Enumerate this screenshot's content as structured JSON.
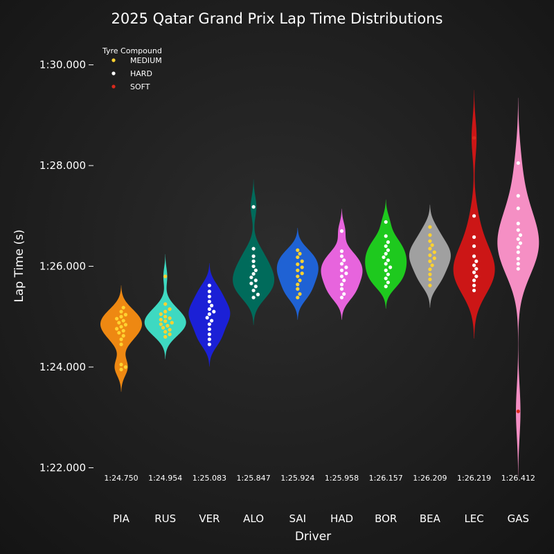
{
  "chart_data": {
    "type": "violin",
    "title": "2025 Qatar Grand Prix Lap Time Distributions",
    "xlabel": "Driver",
    "ylabel": "Lap Time (s)",
    "ylim": [
      81.8,
      90.6
    ],
    "y_ticks": [
      {
        "value": 82,
        "label": "1:22.000"
      },
      {
        "value": 84,
        "label": "1:24.000"
      },
      {
        "value": 86,
        "label": "1:26.000"
      },
      {
        "value": 88,
        "label": "1:28.000"
      },
      {
        "value": 90,
        "label": "1:30.000"
      }
    ],
    "legend": {
      "title": "Tyre Compound",
      "position": "top-left",
      "items": [
        {
          "name": "MEDIUM",
          "color": "#ffd230"
        },
        {
          "name": "HARD",
          "color": "#ffffff"
        },
        {
          "name": "SOFT",
          "color": "#da291c"
        }
      ]
    },
    "compound_colors": {
      "MEDIUM": "#ffd230",
      "HARD": "#ffffff",
      "SOFT": "#da291c"
    },
    "background": "#1c1c1c",
    "drivers": [
      {
        "code": "PIA",
        "color": "#ee8812",
        "median_label": "1:24.750",
        "median": 84.75,
        "laps": [
          {
            "t": 84.05,
            "c": "MEDIUM"
          },
          {
            "t": 84.0,
            "c": "MEDIUM"
          },
          {
            "t": 83.95,
            "c": "MEDIUM"
          },
          {
            "t": 84.45,
            "c": "MEDIUM"
          },
          {
            "t": 84.55,
            "c": "MEDIUM"
          },
          {
            "t": 84.62,
            "c": "MEDIUM"
          },
          {
            "t": 84.68,
            "c": "MEDIUM"
          },
          {
            "t": 84.72,
            "c": "MEDIUM"
          },
          {
            "t": 84.76,
            "c": "MEDIUM"
          },
          {
            "t": 84.8,
            "c": "MEDIUM"
          },
          {
            "t": 84.84,
            "c": "MEDIUM"
          },
          {
            "t": 84.88,
            "c": "MEDIUM"
          },
          {
            "t": 84.92,
            "c": "MEDIUM"
          },
          {
            "t": 84.96,
            "c": "MEDIUM"
          },
          {
            "t": 85.0,
            "c": "MEDIUM"
          },
          {
            "t": 85.04,
            "c": "MEDIUM"
          },
          {
            "t": 85.1,
            "c": "MEDIUM"
          },
          {
            "t": 85.18,
            "c": "MEDIUM"
          }
        ]
      },
      {
        "code": "RUS",
        "color": "#3ed9c1",
        "median_label": "1:24.954",
        "median": 84.954,
        "laps": [
          {
            "t": 85.8,
            "c": "MEDIUM"
          },
          {
            "t": 85.25,
            "c": "MEDIUM"
          },
          {
            "t": 85.15,
            "c": "MEDIUM"
          },
          {
            "t": 85.1,
            "c": "MEDIUM"
          },
          {
            "t": 85.05,
            "c": "MEDIUM"
          },
          {
            "t": 85.0,
            "c": "MEDIUM"
          },
          {
            "t": 84.97,
            "c": "MEDIUM"
          },
          {
            "t": 84.94,
            "c": "MEDIUM"
          },
          {
            "t": 84.91,
            "c": "MEDIUM"
          },
          {
            "t": 84.88,
            "c": "MEDIUM"
          },
          {
            "t": 84.85,
            "c": "MEDIUM"
          },
          {
            "t": 84.82,
            "c": "MEDIUM"
          },
          {
            "t": 84.78,
            "c": "MEDIUM"
          },
          {
            "t": 84.74,
            "c": "MEDIUM"
          },
          {
            "t": 84.7,
            "c": "MEDIUM"
          },
          {
            "t": 84.65,
            "c": "MEDIUM"
          },
          {
            "t": 84.6,
            "c": "MEDIUM"
          }
        ]
      },
      {
        "code": "VER",
        "color": "#1b20d6",
        "median_label": "1:25.083",
        "median": 85.083,
        "laps": [
          {
            "t": 85.62,
            "c": "HARD"
          },
          {
            "t": 85.5,
            "c": "HARD"
          },
          {
            "t": 85.4,
            "c": "HARD"
          },
          {
            "t": 85.3,
            "c": "HARD"
          },
          {
            "t": 85.22,
            "c": "HARD"
          },
          {
            "t": 85.15,
            "c": "HARD"
          },
          {
            "t": 85.1,
            "c": "HARD"
          },
          {
            "t": 85.05,
            "c": "HARD"
          },
          {
            "t": 84.98,
            "c": "HARD"
          },
          {
            "t": 84.92,
            "c": "HARD"
          },
          {
            "t": 84.85,
            "c": "HARD"
          },
          {
            "t": 84.75,
            "c": "HARD"
          },
          {
            "t": 84.65,
            "c": "HARD"
          },
          {
            "t": 84.55,
            "c": "HARD"
          },
          {
            "t": 84.45,
            "c": "HARD"
          }
        ]
      },
      {
        "code": "ALO",
        "color": "#006b5b",
        "median_label": "1:25.847",
        "median": 85.847,
        "laps": [
          {
            "t": 87.18,
            "c": "HARD"
          },
          {
            "t": 86.35,
            "c": "HARD"
          },
          {
            "t": 86.2,
            "c": "HARD"
          },
          {
            "t": 86.1,
            "c": "HARD"
          },
          {
            "t": 86.0,
            "c": "HARD"
          },
          {
            "t": 85.92,
            "c": "HARD"
          },
          {
            "t": 85.85,
            "c": "HARD"
          },
          {
            "t": 85.78,
            "c": "HARD"
          },
          {
            "t": 85.72,
            "c": "HARD"
          },
          {
            "t": 85.66,
            "c": "HARD"
          },
          {
            "t": 85.6,
            "c": "HARD"
          },
          {
            "t": 85.52,
            "c": "HARD"
          },
          {
            "t": 85.44,
            "c": "HARD"
          },
          {
            "t": 85.38,
            "c": "HARD"
          }
        ]
      },
      {
        "code": "SAI",
        "color": "#1f62d4",
        "median_label": "1:25.924",
        "median": 85.924,
        "laps": [
          {
            "t": 86.32,
            "c": "MEDIUM"
          },
          {
            "t": 86.25,
            "c": "MEDIUM"
          },
          {
            "t": 86.18,
            "c": "MEDIUM"
          },
          {
            "t": 86.1,
            "c": "MEDIUM"
          },
          {
            "t": 86.04,
            "c": "MEDIUM"
          },
          {
            "t": 85.98,
            "c": "MEDIUM"
          },
          {
            "t": 85.92,
            "c": "MEDIUM"
          },
          {
            "t": 85.86,
            "c": "MEDIUM"
          },
          {
            "t": 85.8,
            "c": "MEDIUM"
          },
          {
            "t": 85.72,
            "c": "MEDIUM"
          },
          {
            "t": 85.64,
            "c": "MEDIUM"
          },
          {
            "t": 85.55,
            "c": "MEDIUM"
          },
          {
            "t": 85.45,
            "c": "MEDIUM"
          },
          {
            "t": 85.38,
            "c": "MEDIUM"
          }
        ]
      },
      {
        "code": "HAD",
        "color": "#e764dd",
        "median_label": "1:25.958",
        "median": 85.958,
        "laps": [
          {
            "t": 86.7,
            "c": "HARD"
          },
          {
            "t": 86.3,
            "c": "HARD"
          },
          {
            "t": 86.2,
            "c": "HARD"
          },
          {
            "t": 86.12,
            "c": "HARD"
          },
          {
            "t": 86.05,
            "c": "HARD"
          },
          {
            "t": 85.98,
            "c": "HARD"
          },
          {
            "t": 85.92,
            "c": "HARD"
          },
          {
            "t": 85.86,
            "c": "HARD"
          },
          {
            "t": 85.8,
            "c": "HARD"
          },
          {
            "t": 85.72,
            "c": "HARD"
          },
          {
            "t": 85.64,
            "c": "HARD"
          },
          {
            "t": 85.55,
            "c": "HARD"
          },
          {
            "t": 85.45,
            "c": "HARD"
          },
          {
            "t": 85.38,
            "c": "HARD"
          }
        ]
      },
      {
        "code": "BOR",
        "color": "#1ec91e",
        "median_label": "1:26.157",
        "median": 86.157,
        "laps": [
          {
            "t": 86.88,
            "c": "HARD"
          },
          {
            "t": 86.6,
            "c": "HARD"
          },
          {
            "t": 86.48,
            "c": "HARD"
          },
          {
            "t": 86.4,
            "c": "HARD"
          },
          {
            "t": 86.32,
            "c": "HARD"
          },
          {
            "t": 86.25,
            "c": "HARD"
          },
          {
            "t": 86.18,
            "c": "HARD"
          },
          {
            "t": 86.12,
            "c": "HARD"
          },
          {
            "t": 86.05,
            "c": "HARD"
          },
          {
            "t": 85.98,
            "c": "HARD"
          },
          {
            "t": 85.92,
            "c": "HARD"
          },
          {
            "t": 85.84,
            "c": "HARD"
          },
          {
            "t": 85.76,
            "c": "HARD"
          },
          {
            "t": 85.68,
            "c": "HARD"
          },
          {
            "t": 85.6,
            "c": "HARD"
          }
        ]
      },
      {
        "code": "BEA",
        "color": "#a0a0a0",
        "median_label": "1:26.209",
        "median": 86.209,
        "laps": [
          {
            "t": 86.78,
            "c": "MEDIUM"
          },
          {
            "t": 86.62,
            "c": "MEDIUM"
          },
          {
            "t": 86.5,
            "c": "MEDIUM"
          },
          {
            "t": 86.42,
            "c": "MEDIUM"
          },
          {
            "t": 86.35,
            "c": "MEDIUM"
          },
          {
            "t": 86.28,
            "c": "MEDIUM"
          },
          {
            "t": 86.22,
            "c": "MEDIUM"
          },
          {
            "t": 86.16,
            "c": "MEDIUM"
          },
          {
            "t": 86.1,
            "c": "MEDIUM"
          },
          {
            "t": 86.02,
            "c": "MEDIUM"
          },
          {
            "t": 85.94,
            "c": "MEDIUM"
          },
          {
            "t": 85.84,
            "c": "MEDIUM"
          },
          {
            "t": 85.74,
            "c": "MEDIUM"
          },
          {
            "t": 85.62,
            "c": "MEDIUM"
          }
        ]
      },
      {
        "code": "LEC",
        "color": "#cc1616",
        "median_label": "1:26.219",
        "median": 86.219,
        "laps": [
          {
            "t": 88.55,
            "c": "SOFT"
          },
          {
            "t": 87.0,
            "c": "HARD"
          },
          {
            "t": 86.58,
            "c": "HARD"
          },
          {
            "t": 86.4,
            "c": "HARD"
          },
          {
            "t": 86.2,
            "c": "HARD"
          },
          {
            "t": 86.1,
            "c": "HARD"
          },
          {
            "t": 86.02,
            "c": "HARD"
          },
          {
            "t": 85.95,
            "c": "HARD"
          },
          {
            "t": 85.88,
            "c": "HARD"
          },
          {
            "t": 85.8,
            "c": "HARD"
          },
          {
            "t": 85.72,
            "c": "HARD"
          },
          {
            "t": 85.62,
            "c": "HARD"
          },
          {
            "t": 85.52,
            "c": "HARD"
          }
        ]
      },
      {
        "code": "GAS",
        "color": "#f58fc4",
        "median_label": "1:26.412",
        "median": 86.412,
        "laps": [
          {
            "t": 88.05,
            "c": "HARD"
          },
          {
            "t": 87.4,
            "c": "HARD"
          },
          {
            "t": 87.15,
            "c": "HARD"
          },
          {
            "t": 86.85,
            "c": "HARD"
          },
          {
            "t": 86.72,
            "c": "HARD"
          },
          {
            "t": 86.62,
            "c": "HARD"
          },
          {
            "t": 86.54,
            "c": "HARD"
          },
          {
            "t": 86.46,
            "c": "HARD"
          },
          {
            "t": 86.38,
            "c": "HARD"
          },
          {
            "t": 86.28,
            "c": "HARD"
          },
          {
            "t": 86.15,
            "c": "HARD"
          },
          {
            "t": 86.05,
            "c": "HARD"
          },
          {
            "t": 85.95,
            "c": "HARD"
          },
          {
            "t": 83.12,
            "c": "SOFT"
          }
        ]
      }
    ]
  }
}
